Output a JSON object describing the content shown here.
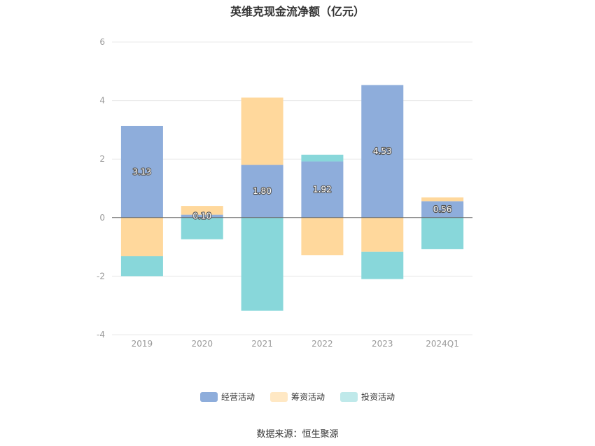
{
  "colors": {
    "operating": "#8eaddb",
    "financing": "#ffd89c",
    "investing": "#88d7da",
    "grid": "#e8e8e8",
    "axis": "#666666"
  },
  "chart_data": {
    "type": "bar",
    "stacked": true,
    "title": "英维克现金流净额（亿元）",
    "xlabel": "",
    "ylabel": "",
    "categories": [
      "2019",
      "2020",
      "2021",
      "2022",
      "2023",
      "2024Q1"
    ],
    "ylim": [
      -4,
      6
    ],
    "yticks": [
      -4,
      -2,
      0,
      2,
      4,
      6
    ],
    "series": [
      {
        "name": "经营活动",
        "values": [
          3.13,
          0.1,
          1.8,
          1.92,
          4.53,
          0.56
        ]
      },
      {
        "name": "筹资活动",
        "values": [
          -1.32,
          0.3,
          2.3,
          -1.28,
          -1.17,
          0.13
        ]
      },
      {
        "name": "投资活动",
        "values": [
          -0.68,
          -0.74,
          -3.18,
          0.23,
          -0.93,
          -1.08
        ]
      }
    ],
    "data_labels": [
      "3.13",
      "0.10",
      "1.80",
      "1.92",
      "4.53",
      "0.56"
    ],
    "legend_position": "bottom"
  },
  "source": "数据来源：恒生聚源"
}
